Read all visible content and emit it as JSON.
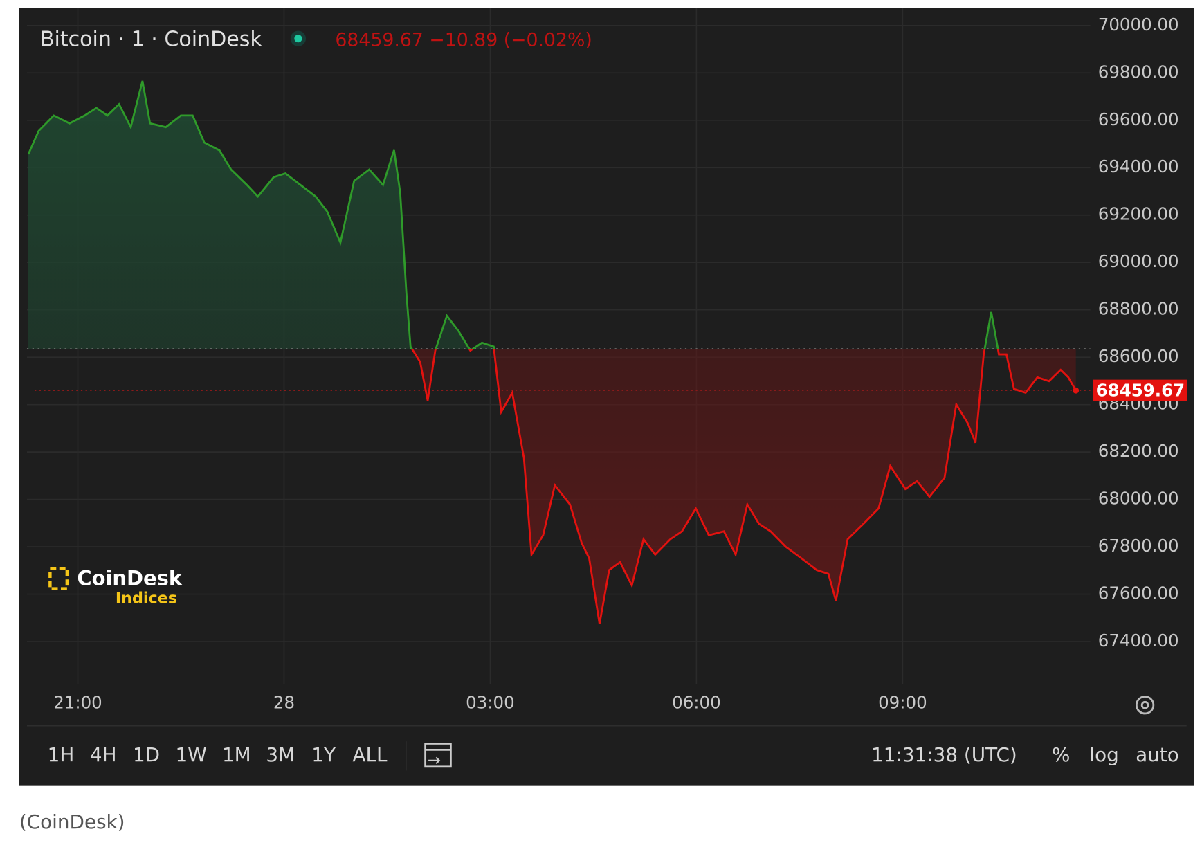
{
  "chart_data": {
    "type": "line",
    "title": "Bitcoin · 1 · CoinDesk",
    "quote": "68459.67 −10.89 (−0.02%)",
    "x": [
      20.28,
      20.43,
      20.65,
      20.88,
      21.1,
      21.27,
      21.43,
      21.6,
      21.77,
      21.94,
      22.05,
      22.28,
      22.5,
      22.67,
      22.84,
      23.06,
      23.23,
      23.46,
      23.62,
      23.85,
      24.02,
      24.24,
      24.46,
      24.63,
      24.82,
      25.02,
      25.24,
      25.44,
      25.6,
      25.69,
      25.78,
      25.84,
      25.98,
      26.09,
      26.2,
      26.37,
      26.54,
      26.71,
      26.88,
      27.05,
      27.16,
      27.32,
      27.49,
      27.6,
      27.77,
      27.94,
      28.16,
      28.33,
      28.44,
      28.59,
      28.73,
      28.89,
      29.06,
      29.23,
      29.4,
      29.62,
      29.79,
      29.99,
      30.18,
      30.4,
      30.57,
      30.74,
      30.91,
      31.08,
      31.3,
      31.53,
      31.75,
      31.92,
      32.03,
      32.2,
      32.43,
      32.65,
      32.82,
      33.04,
      33.21,
      33.39,
      33.61,
      33.78,
      33.95,
      34.06,
      34.18,
      34.29,
      34.4,
      34.51,
      34.62,
      34.79,
      34.96,
      35.13,
      35.3,
      35.41,
      35.52
    ],
    "values": [
      69457,
      69555,
      69620,
      69587,
      69620,
      69652,
      69620,
      69668,
      69571,
      69766,
      69587,
      69571,
      69620,
      69620,
      69506,
      69473,
      69392,
      69327,
      69278,
      69360,
      69376,
      69327,
      69278,
      69214,
      69084,
      69344,
      69392,
      69327,
      69474,
      69295,
      68872,
      68645,
      68580,
      68417,
      68628,
      68775,
      68710,
      68628,
      68661,
      68645,
      68369,
      68450,
      68174,
      67767,
      67849,
      68060,
      67979,
      67816,
      67751,
      67475,
      67702,
      67735,
      67637,
      67832,
      67767,
      67832,
      67865,
      67962,
      67849,
      67865,
      67767,
      67979,
      67897,
      67865,
      67800,
      67751,
      67702,
      67686,
      67572,
      67832,
      67897,
      67962,
      68141,
      68044,
      68077,
      68011,
      68092,
      68401,
      68320,
      68239,
      68612,
      68791,
      68612,
      68612,
      68466,
      68450,
      68515,
      68499,
      68547,
      68515,
      68459.67
    ],
    "baseline": 68635,
    "price_marker": 68459.67,
    "up_color": "#2f9a2a",
    "down_color": "#e3120f",
    "xlim": [
      20.26,
      35.73
    ],
    "xticks": [
      {
        "value": 21,
        "label": "21:00"
      },
      {
        "value": 24,
        "label": "28"
      },
      {
        "value": 27,
        "label": "03:00"
      },
      {
        "value": 30,
        "label": "06:00"
      },
      {
        "value": 33,
        "label": "09:00"
      }
    ],
    "ylim": [
      67220,
      70075
    ],
    "yticks": [
      {
        "value": 67400,
        "label": "67400.00"
      },
      {
        "value": 67600,
        "label": "67600.00"
      },
      {
        "value": 67800,
        "label": "67800.00"
      },
      {
        "value": 68000,
        "label": "68000.00"
      },
      {
        "value": 68200,
        "label": "68200.00"
      },
      {
        "value": 68400,
        "label": "68400.00"
      },
      {
        "value": 68600,
        "label": "68600.00"
      },
      {
        "value": 68800,
        "label": "68800.00"
      },
      {
        "value": 69000,
        "label": "69000.00"
      },
      {
        "value": 69200,
        "label": "69200.00"
      },
      {
        "value": 69400,
        "label": "69400.00"
      },
      {
        "value": 69600,
        "label": "69600.00"
      },
      {
        "value": 69800,
        "label": "69800.00"
      },
      {
        "value": 70000,
        "label": "70000.00"
      }
    ],
    "grid": true,
    "ranges": [
      "1H",
      "4H",
      "1D",
      "1W",
      "1M",
      "3M",
      "1Y",
      "ALL"
    ],
    "clock": "11:31:38 (UTC)",
    "options": [
      "%",
      "log",
      "auto"
    ],
    "logo": {
      "name": "CoinDesk",
      "sub": "Indices"
    }
  },
  "caption": "(CoinDesk)"
}
